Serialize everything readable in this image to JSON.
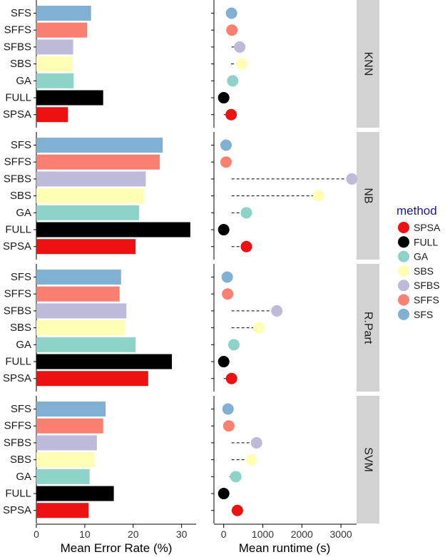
{
  "chart_data": {
    "type": "faceted-bar-and-dot",
    "methods": [
      "SFS",
      "SFFS",
      "SFBS",
      "SBS",
      "GA",
      "FULL",
      "SPSA"
    ],
    "colors": {
      "SPSA": "#ee1111",
      "FULL": "#000000",
      "GA": "#8dd3c7",
      "SBS": "#ffffb3",
      "SFBS": "#bebada",
      "SFFS": "#fb8072",
      "SFS": "#80b1d3"
    },
    "facets": [
      {
        "label": "KNN",
        "error_rate": [
          11.3,
          10.5,
          7.6,
          7.5,
          7.7,
          13.8,
          6.5
        ],
        "runtime": [
          200,
          210,
          410,
          460,
          230,
          0,
          190
        ],
        "runtime_tails": [
          [
            70,
            200
          ],
          [
            100,
            210
          ],
          [
            200,
            410
          ],
          [
            190,
            460
          ],
          [
            100,
            230
          ],
          [
            0,
            0
          ],
          [
            0,
            190
          ]
        ]
      },
      {
        "label": "NB",
        "error_rate": [
          26.1,
          25.5,
          22.6,
          22.3,
          21.2,
          31.8,
          20.5
        ],
        "runtime": [
          60,
          60,
          3280,
          2430,
          580,
          0,
          580
        ],
        "runtime_tails": [
          [
            0,
            60
          ],
          [
            0,
            60
          ],
          [
            200,
            3280
          ],
          [
            200,
            2430
          ],
          [
            200,
            580
          ],
          [
            0,
            0
          ],
          [
            200,
            580
          ]
        ]
      },
      {
        "label": "R.Part",
        "error_rate": [
          17.5,
          17.2,
          18.6,
          18.3,
          20.5,
          28.0,
          23.1
        ],
        "runtime": [
          90,
          100,
          1360,
          900,
          260,
          0,
          200
        ],
        "runtime_tails": [
          [
            0,
            90
          ],
          [
            0,
            100
          ],
          [
            200,
            1360
          ],
          [
            200,
            900
          ],
          [
            150,
            260
          ],
          [
            0,
            0
          ],
          [
            0,
            200
          ]
        ]
      },
      {
        "label": "SVM",
        "error_rate": [
          14.3,
          13.8,
          12.5,
          12.0,
          11.0,
          16.0,
          10.8
        ],
        "runtime": [
          110,
          130,
          840,
          710,
          310,
          0,
          350
        ],
        "runtime_tails": [
          [
            0,
            110
          ],
          [
            0,
            130
          ],
          [
            200,
            840
          ],
          [
            200,
            710
          ],
          [
            150,
            310
          ],
          [
            0,
            0
          ],
          [
            200,
            350
          ]
        ]
      }
    ],
    "left_panel": {
      "xlabel": "Mean Error Rate (%)",
      "xlim": [
        0,
        33
      ],
      "ticks": [
        "0",
        "10",
        "20",
        "30"
      ]
    },
    "right_panel": {
      "xlabel": "Mean runtime (s)",
      "xlim": [
        -250,
        3400
      ],
      "ticks": [
        "0",
        "1000",
        "2000",
        "3000"
      ]
    },
    "legend": {
      "title": "method",
      "title_color": "#1a1a8c",
      "placement": "right",
      "order": [
        "SPSA",
        "FULL",
        "GA",
        "SBS",
        "SFBS",
        "SFFS",
        "SFS"
      ]
    },
    "grid": false
  }
}
